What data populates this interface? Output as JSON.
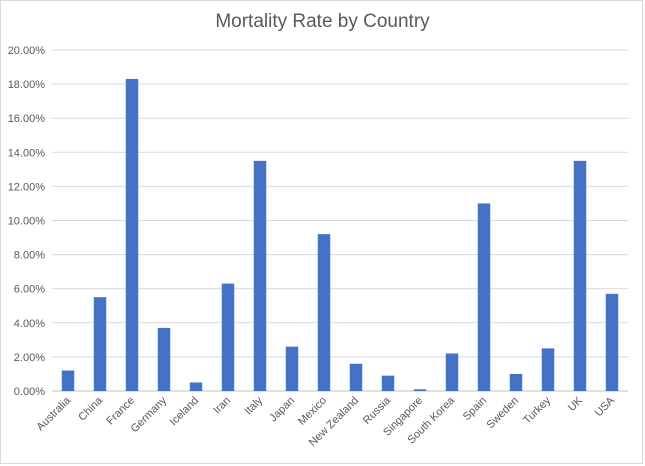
{
  "chart_data": {
    "type": "bar",
    "title": "Mortality Rate by Country",
    "xlabel": "",
    "ylabel": "",
    "categories": [
      "Australia",
      "China",
      "France",
      "Germany",
      "Iceland",
      "Iran",
      "Italy",
      "Japan",
      "Mexico",
      "New Zealand",
      "Russia",
      "Singapore",
      "South Korea",
      "Spain",
      "Sweden",
      "Turkey",
      "UK",
      "USA"
    ],
    "values": [
      1.2,
      5.5,
      18.3,
      3.7,
      0.5,
      6.3,
      13.5,
      2.6,
      9.2,
      1.6,
      0.9,
      0.1,
      2.2,
      11.0,
      1.0,
      2.5,
      13.5,
      5.7
    ],
    "ylim": [
      0,
      20
    ],
    "yticks": [
      "0.00%",
      "2.00%",
      "4.00%",
      "6.00%",
      "8.00%",
      "10.00%",
      "12.00%",
      "14.00%",
      "16.00%",
      "18.00%",
      "20.00%"
    ],
    "grid": true,
    "legend": "none",
    "bar_color": "#4472c4"
  }
}
